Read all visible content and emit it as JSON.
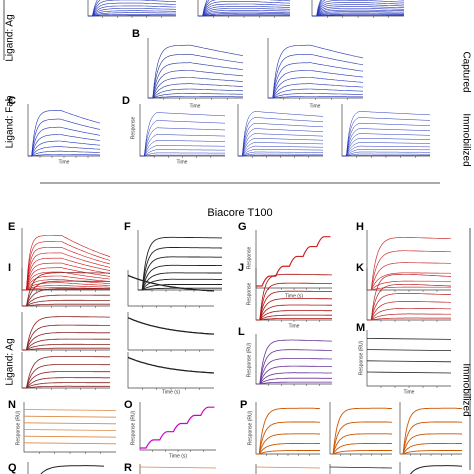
{
  "panels": {
    "B": "B",
    "C": "C",
    "D": "D",
    "E": "E",
    "F": "F",
    "G": "G",
    "H": "H",
    "I": "I",
    "J": "J",
    "K": "K",
    "L": "L",
    "M": "M",
    "N": "N",
    "O": "O",
    "P": "P",
    "Q": "Q",
    "R": "R"
  },
  "section_title": "Biacore T100",
  "side_labels": {
    "ligand_ag_top": "Ligand: Ag",
    "ligand_fab": "Ligand: Fab",
    "captured": "Captured",
    "immobilized_top": "Immobilized",
    "ligand_ag_bottom": "Ligand: Ag",
    "immobilized_bottom": "Immobilized"
  },
  "axis_labels": {
    "time": "Time",
    "time_s": "Time (s)",
    "response": "Response",
    "response_ru": "Response (RU)"
  }
}
